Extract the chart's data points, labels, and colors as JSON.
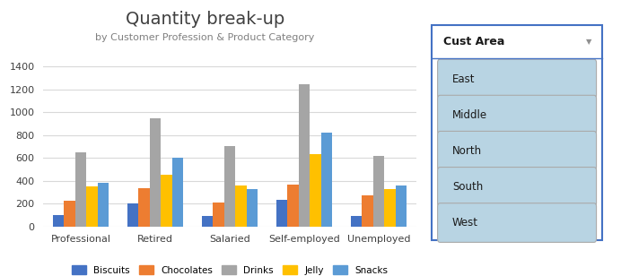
{
  "title": "Quantity break-up",
  "subtitle": "by Customer Profession & Product Category",
  "categories": [
    "Professional",
    "Retired",
    "Salaried",
    "Self-employed",
    "Unemployed"
  ],
  "series": {
    "Biscuits": [
      100,
      200,
      90,
      235,
      90
    ],
    "Chocolates": [
      225,
      335,
      210,
      365,
      270
    ],
    "Drinks": [
      650,
      950,
      700,
      1245,
      615
    ],
    "Jelly": [
      350,
      450,
      355,
      635,
      330
    ],
    "Snacks": [
      385,
      600,
      330,
      820,
      360
    ]
  },
  "bar_colors": [
    "#4472c4",
    "#ed7d31",
    "#a5a5a5",
    "#ffc000",
    "#5b9bd5"
  ],
  "ylim": [
    0,
    1500
  ],
  "yticks": [
    0,
    200,
    400,
    600,
    800,
    1000,
    1200,
    1400
  ],
  "legend_labels": [
    "Biscuits",
    "Chocolates",
    "Drinks",
    "Jelly",
    "Snacks"
  ],
  "slicer_title": "Cust Area",
  "slicer_items": [
    "East",
    "Middle",
    "North",
    "South",
    "West"
  ],
  "background_color": "#ffffff",
  "plot_bg": "#ffffff",
  "grid_color": "#d9d9d9",
  "title_color": "#404040",
  "subtitle_color": "#808080",
  "slicer_border_color": "#4472c4",
  "slicer_item_bg": "#b8d4e3",
  "slicer_item_border": "#aaaaaa"
}
